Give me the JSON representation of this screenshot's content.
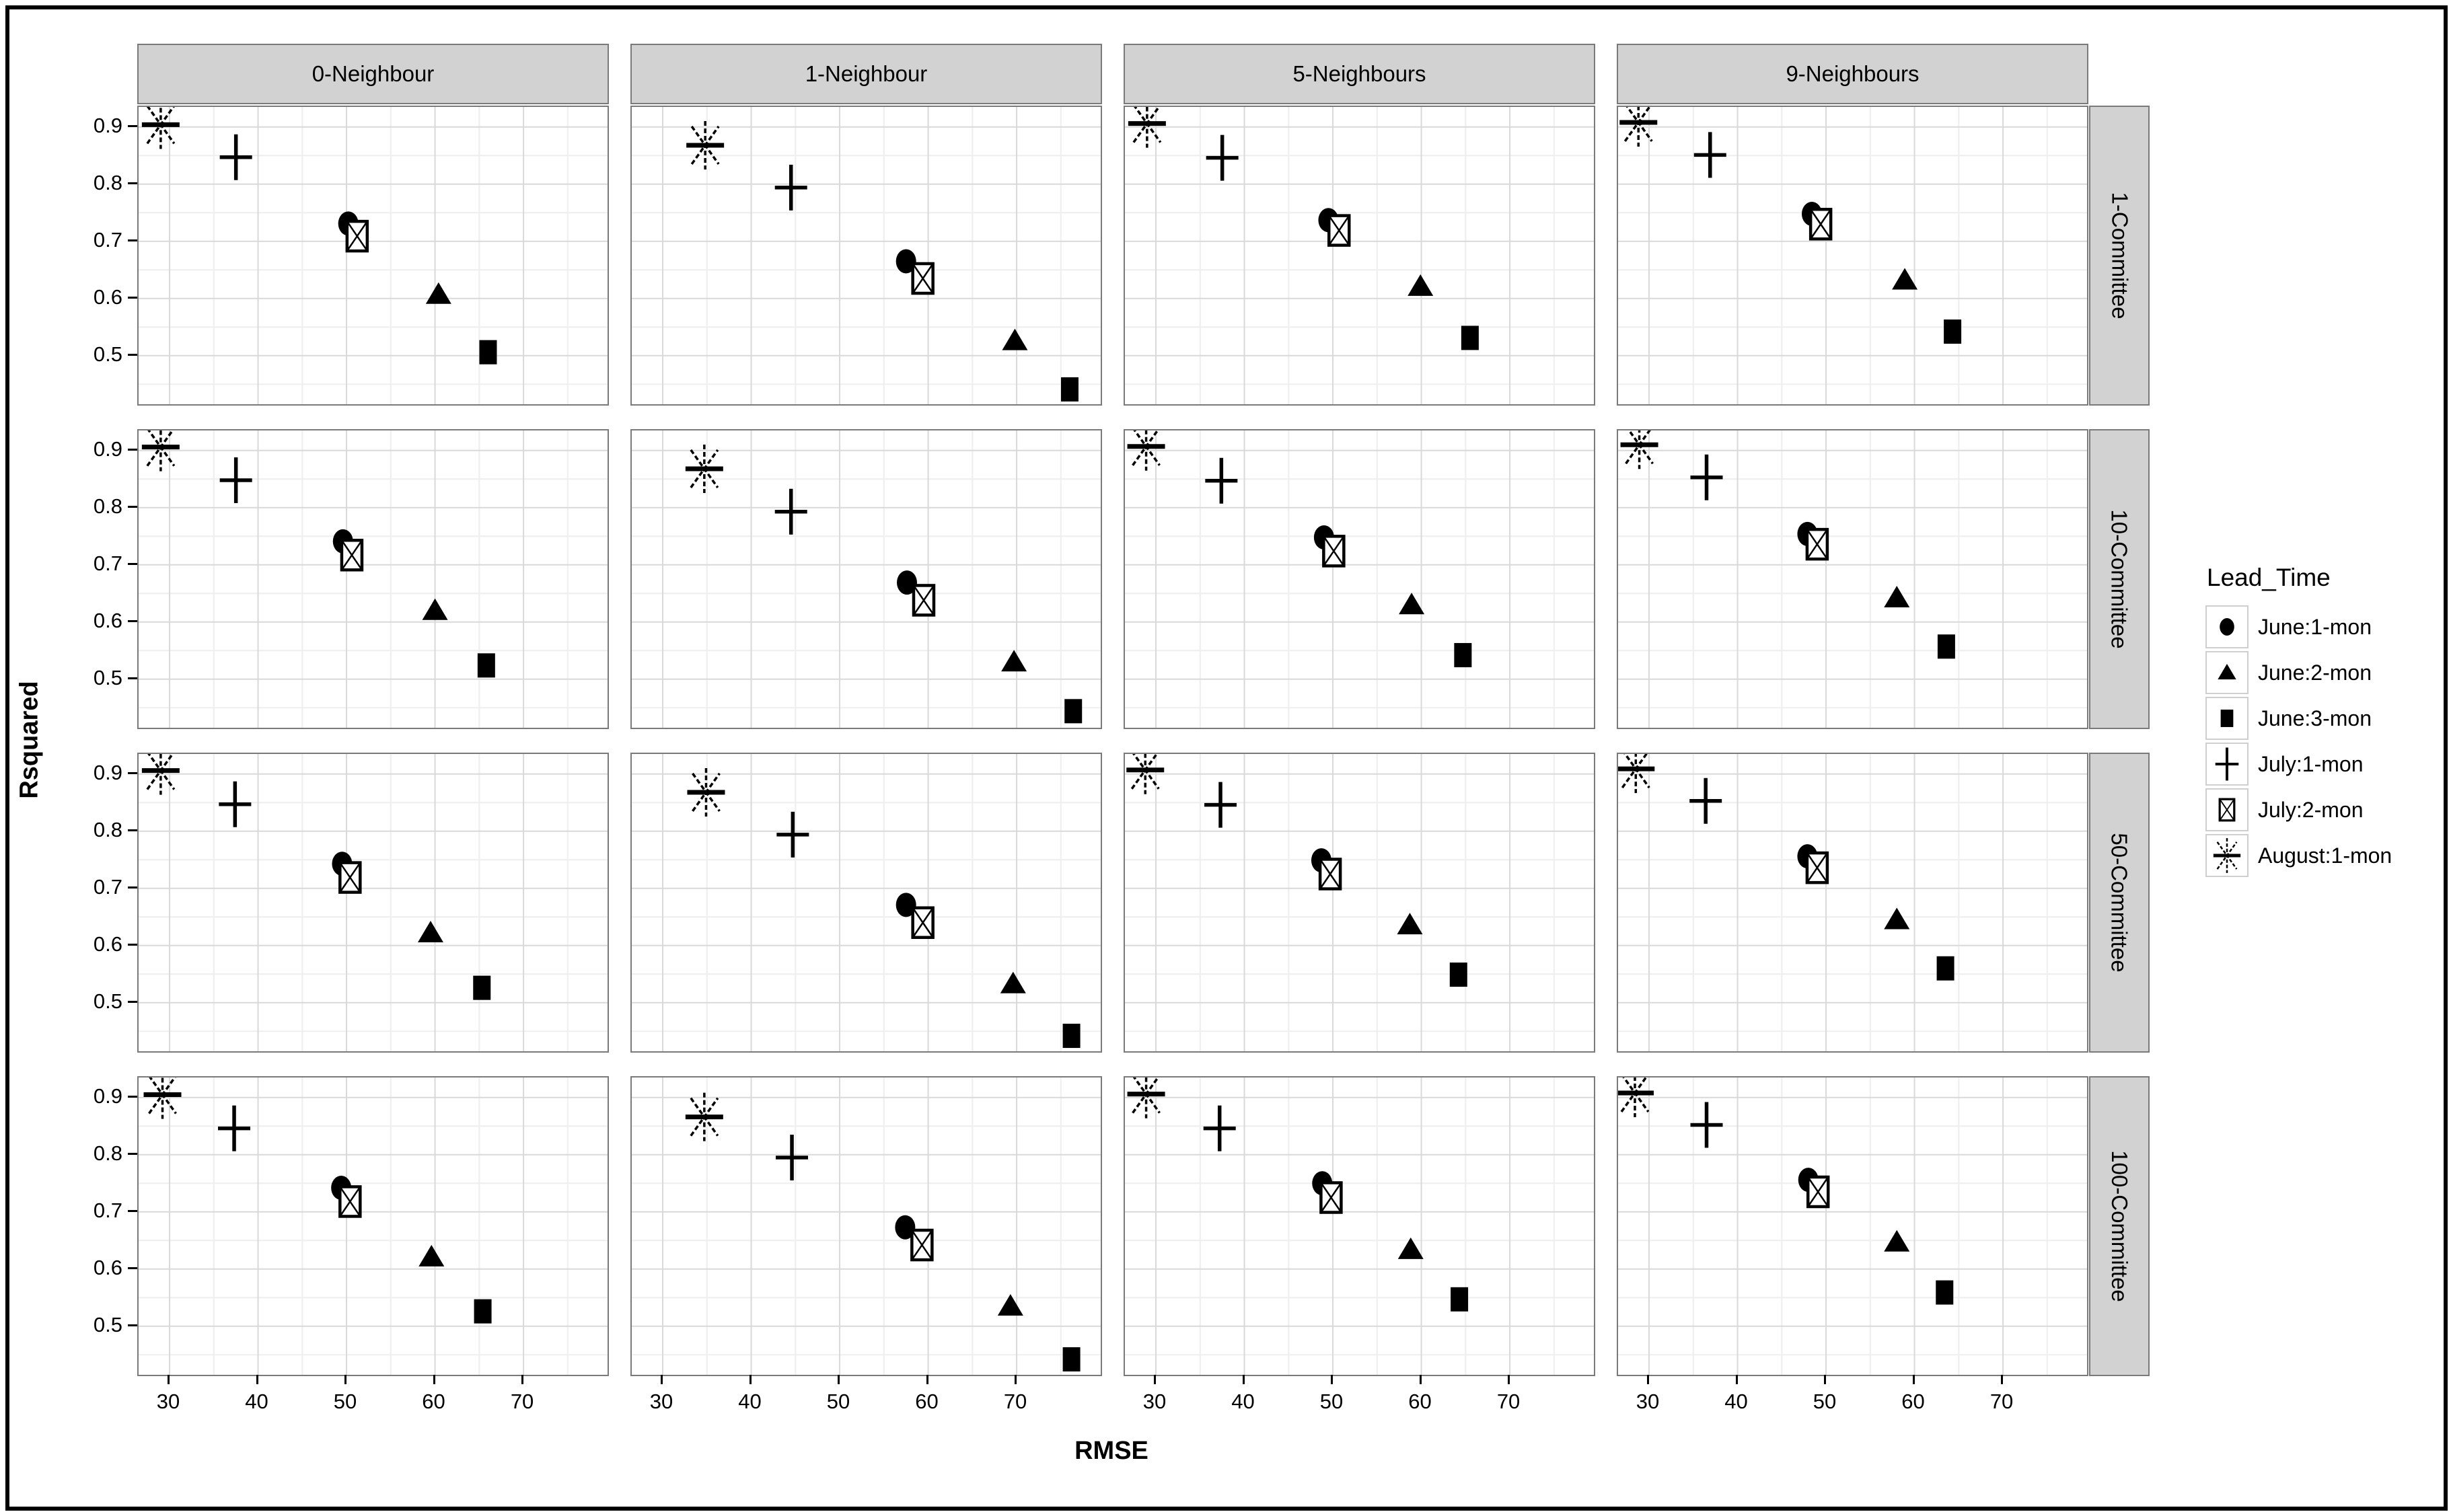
{
  "colors": {
    "foreground": "#000000",
    "strip_bg": "#d2d2d2",
    "strip_border": "#7a7a7a",
    "panel_border": "#7a7a7a",
    "grid_major": "#d9d9d9",
    "grid_minor": "#efefef",
    "legend_key_border": "#cfcfcf"
  },
  "legend": {
    "title": "Lead_Time",
    "position": "right"
  },
  "chart_data": {
    "type": "scatter",
    "title": "",
    "xlabel": "RMSE",
    "ylabel": "Rsquared",
    "x_ticks": [
      30,
      40,
      50,
      60,
      70
    ],
    "y_ticks": [
      0.9,
      0.8,
      0.7,
      0.6,
      0.5
    ],
    "x_range": [
      26.5,
      79.5
    ],
    "y_range": [
      0.415,
      0.935
    ],
    "grid": true,
    "facet_columns": [
      "0-Neighbour",
      "1-Neighbour",
      "5-Neighbours",
      "9-Neighbours"
    ],
    "facet_rows": [
      "1-Committee",
      "10-Committee",
      "50-Committee",
      "100-Committee"
    ],
    "series": [
      {
        "key": "june1",
        "label": "June:1-mon",
        "marker": "circle"
      },
      {
        "key": "june2",
        "label": "June:2-mon",
        "marker": "triangle"
      },
      {
        "key": "june3",
        "label": "June:3-mon",
        "marker": "square"
      },
      {
        "key": "july1",
        "label": "July:1-mon",
        "marker": "plus"
      },
      {
        "key": "july2",
        "label": "July:2-mon",
        "marker": "boxed-x"
      },
      {
        "key": "aug1",
        "label": "August:1-mon",
        "marker": "asterisk"
      }
    ],
    "panels": [
      {
        "row": "1-Committee",
        "col": "0-Neighbour",
        "points": {
          "june1": [
            50.2,
            0.731
          ],
          "june2": [
            60.4,
            0.607
          ],
          "june3": [
            66.0,
            0.506
          ],
          "july1": [
            37.5,
            0.847
          ],
          "july2": [
            51.2,
            0.709
          ],
          "aug1": [
            29.0,
            0.904
          ]
        }
      },
      {
        "row": "1-Committee",
        "col": "1-Neighbour",
        "points": {
          "june1": [
            57.5,
            0.665
          ],
          "june2": [
            69.8,
            0.526
          ],
          "june3": [
            76.0,
            0.441
          ],
          "july1": [
            44.5,
            0.794
          ],
          "july2": [
            59.4,
            0.635
          ],
          "aug1": [
            34.8,
            0.868
          ]
        }
      },
      {
        "row": "1-Committee",
        "col": "5-Neighbours",
        "points": {
          "june1": [
            49.5,
            0.737
          ],
          "june2": [
            59.9,
            0.621
          ],
          "june3": [
            65.5,
            0.531
          ],
          "july1": [
            37.5,
            0.846
          ],
          "july2": [
            50.7,
            0.719
          ],
          "aug1": [
            29.0,
            0.906
          ]
        }
      },
      {
        "row": "1-Committee",
        "col": "9-Neighbours",
        "points": {
          "june1": [
            48.4,
            0.748
          ],
          "june2": [
            58.9,
            0.632
          ],
          "june3": [
            64.3,
            0.542
          ],
          "july1": [
            36.9,
            0.851
          ],
          "july2": [
            49.4,
            0.73
          ],
          "aug1": [
            28.8,
            0.908
          ]
        }
      },
      {
        "row": "10-Committee",
        "col": "0-Neighbour",
        "points": {
          "june1": [
            49.6,
            0.741
          ],
          "june2": [
            60.0,
            0.62
          ],
          "june3": [
            65.8,
            0.524
          ],
          "july1": [
            37.5,
            0.848
          ],
          "july2": [
            50.6,
            0.717
          ],
          "aug1": [
            29.0,
            0.906
          ]
        }
      },
      {
        "row": "10-Committee",
        "col": "1-Neighbour",
        "points": {
          "june1": [
            57.6,
            0.669
          ],
          "june2": [
            69.7,
            0.53
          ],
          "june3": [
            76.4,
            0.444
          ],
          "july1": [
            44.5,
            0.793
          ],
          "july2": [
            59.5,
            0.638
          ],
          "aug1": [
            34.7,
            0.868
          ]
        }
      },
      {
        "row": "10-Committee",
        "col": "5-Neighbours",
        "points": {
          "june1": [
            49.0,
            0.748
          ],
          "june2": [
            58.9,
            0.63
          ],
          "june3": [
            64.7,
            0.542
          ],
          "july1": [
            37.4,
            0.847
          ],
          "july2": [
            50.1,
            0.724
          ],
          "aug1": [
            28.9,
            0.907
          ]
        }
      },
      {
        "row": "10-Committee",
        "col": "9-Neighbours",
        "points": {
          "june1": [
            47.9,
            0.754
          ],
          "june2": [
            58.0,
            0.642
          ],
          "june3": [
            63.6,
            0.557
          ],
          "july1": [
            36.5,
            0.853
          ],
          "july2": [
            49.0,
            0.736
          ],
          "aug1": [
            28.9,
            0.91
          ]
        }
      },
      {
        "row": "50-Committee",
        "col": "0-Neighbour",
        "points": {
          "june1": [
            49.5,
            0.743
          ],
          "june2": [
            59.5,
            0.622
          ],
          "june3": [
            65.3,
            0.526
          ],
          "july1": [
            37.4,
            0.847
          ],
          "july2": [
            50.4,
            0.719
          ],
          "aug1": [
            29.0,
            0.906
          ]
        }
      },
      {
        "row": "50-Committee",
        "col": "1-Neighbour",
        "points": {
          "june1": [
            57.5,
            0.671
          ],
          "june2": [
            69.6,
            0.533
          ],
          "june3": [
            76.2,
            0.442
          ],
          "july1": [
            44.7,
            0.794
          ],
          "july2": [
            59.4,
            0.64
          ],
          "aug1": [
            34.9,
            0.868
          ]
        }
      },
      {
        "row": "50-Committee",
        "col": "5-Neighbours",
        "points": {
          "june1": [
            48.7,
            0.749
          ],
          "june2": [
            58.7,
            0.636
          ],
          "june3": [
            64.2,
            0.549
          ],
          "july1": [
            37.3,
            0.846
          ],
          "july2": [
            49.7,
            0.725
          ],
          "aug1": [
            28.8,
            0.907
          ]
        }
      },
      {
        "row": "50-Committee",
        "col": "9-Neighbours",
        "points": {
          "june1": [
            47.9,
            0.756
          ],
          "june2": [
            58.0,
            0.645
          ],
          "june3": [
            63.5,
            0.56
          ],
          "july1": [
            36.4,
            0.853
          ],
          "july2": [
            49.0,
            0.736
          ],
          "aug1": [
            28.5,
            0.909
          ]
        }
      },
      {
        "row": "100-Committee",
        "col": "0-Neighbour",
        "points": {
          "june1": [
            49.4,
            0.742
          ],
          "june2": [
            59.6,
            0.621
          ],
          "june3": [
            65.4,
            0.526
          ],
          "july1": [
            37.3,
            0.846
          ],
          "july2": [
            50.4,
            0.718
          ],
          "aug1": [
            29.2,
            0.905
          ]
        }
      },
      {
        "row": "100-Committee",
        "col": "1-Neighbour",
        "points": {
          "june1": [
            57.4,
            0.673
          ],
          "june2": [
            69.3,
            0.535
          ],
          "june3": [
            76.2,
            0.442
          ],
          "july1": [
            44.6,
            0.795
          ],
          "july2": [
            59.3,
            0.642
          ],
          "aug1": [
            34.7,
            0.866
          ]
        }
      },
      {
        "row": "100-Committee",
        "col": "5-Neighbours",
        "points": {
          "june1": [
            48.8,
            0.75
          ],
          "june2": [
            58.8,
            0.634
          ],
          "june3": [
            64.3,
            0.547
          ],
          "july1": [
            37.2,
            0.846
          ],
          "july2": [
            49.8,
            0.725
          ],
          "aug1": [
            28.9,
            0.906
          ]
        }
      },
      {
        "row": "100-Committee",
        "col": "9-Neighbours",
        "points": {
          "june1": [
            48.0,
            0.756
          ],
          "june2": [
            58.0,
            0.647
          ],
          "june3": [
            63.4,
            0.559
          ],
          "july1": [
            36.5,
            0.852
          ],
          "july2": [
            49.1,
            0.735
          ],
          "aug1": [
            28.4,
            0.908
          ]
        }
      }
    ]
  }
}
